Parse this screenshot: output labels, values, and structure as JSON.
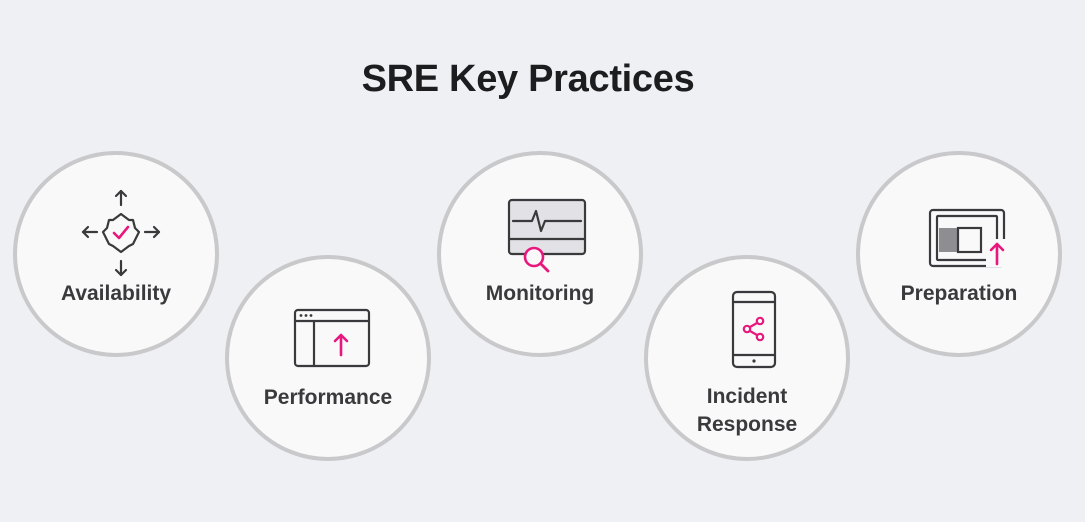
{
  "title": "SRE Key Practices",
  "accent_color": "#e8177d",
  "icon_color": "#3a3a3c",
  "practices": [
    {
      "label": "Availability",
      "icon": "gear-check-arrows-icon"
    },
    {
      "label": "Performance",
      "icon": "browser-up-arrow-icon"
    },
    {
      "label": "Monitoring",
      "icon": "monitor-pulse-search-icon"
    },
    {
      "label": "Incident Response",
      "icon": "phone-share-icon"
    },
    {
      "label": "Preparation",
      "icon": "window-up-arrow-icon"
    }
  ]
}
